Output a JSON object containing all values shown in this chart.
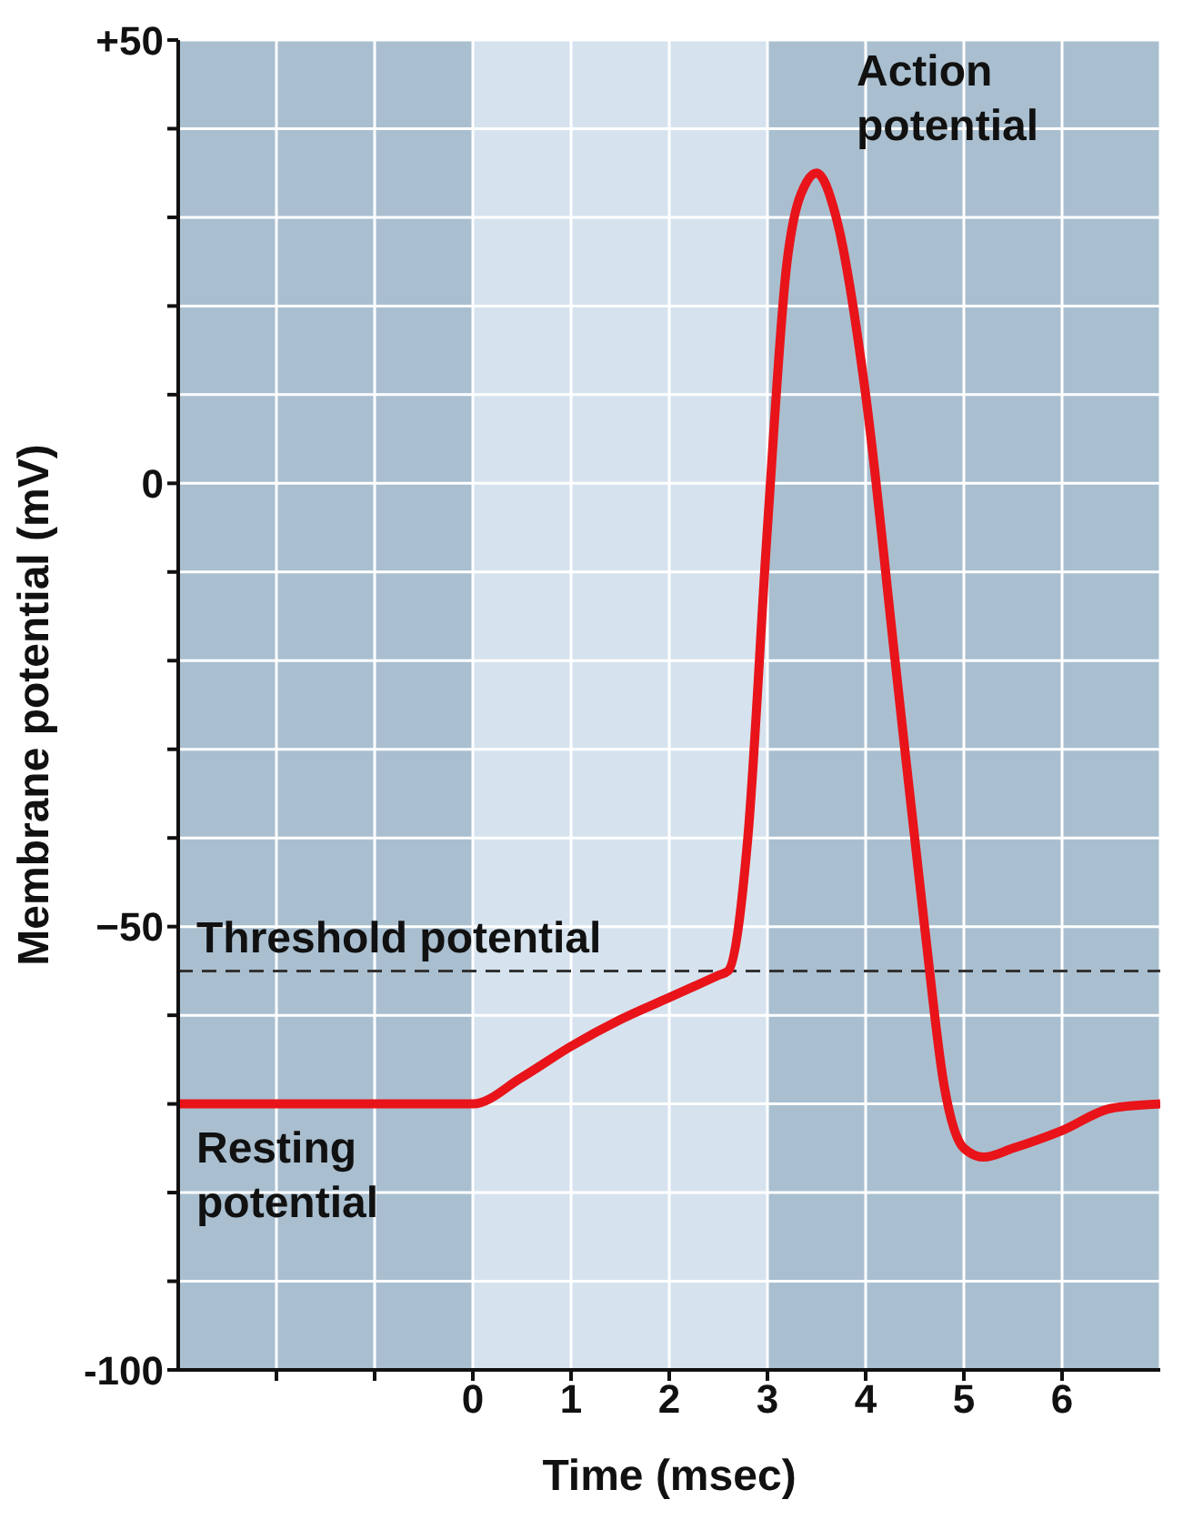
{
  "chart_data": {
    "type": "line",
    "xlabel": "Time (msec)",
    "ylabel": "Membrane potential (mV)",
    "x": [
      -3,
      0,
      0.5,
      1,
      1.5,
      2,
      2.5,
      2.6,
      2.8,
      3.0,
      3.2,
      3.4,
      3.5,
      3.7,
      4.0,
      4.3,
      4.6,
      4.8,
      5.0,
      5.2,
      5.5,
      6.0,
      6.5,
      7
    ],
    "series": [
      {
        "color": "#e8141a",
        "values": [
          -70,
          -70,
          -67,
          -63.5,
          -60.5,
          -58,
          -55.5,
          -55,
          -40,
          -5,
          25,
          34,
          35,
          30,
          10,
          -20,
          -50,
          -68,
          -75,
          -76,
          -75,
          -73,
          -70.5,
          -70
        ]
      }
    ],
    "xlim": [
      -3,
      7
    ],
    "xticks": [
      {
        "value": -2,
        "label": null
      },
      {
        "value": -1,
        "label": null
      },
      0,
      1,
      2,
      3,
      4,
      5,
      6
    ],
    "ylim": [
      -100,
      50
    ],
    "yticks": [
      -100,
      {
        "value": -90,
        "label": null
      },
      {
        "value": -80,
        "label": null
      },
      {
        "value": -70,
        "label": null
      },
      {
        "value": -60,
        "label": null
      },
      {
        "value": -50,
        "label": "−50"
      },
      {
        "value": -40,
        "label": null
      },
      {
        "value": -30,
        "label": null
      },
      {
        "value": -20,
        "label": null
      },
      {
        "value": -10,
        "label": null
      },
      0,
      {
        "value": 10,
        "label": null
      },
      {
        "value": 20,
        "label": null
      },
      {
        "value": 30,
        "label": null
      },
      {
        "value": 40,
        "label": null
      },
      {
        "value": 50,
        "label": "+50"
      }
    ],
    "grid": true,
    "marker": "none",
    "line_style": "solid",
    "bands": [
      {
        "axis": "x",
        "from": -3,
        "to": 0,
        "color": "#a9bfd0"
      },
      {
        "axis": "x",
        "from": 0,
        "to": 3,
        "color": "#d6e3ee"
      },
      {
        "axis": "x",
        "from": 3,
        "to": 7,
        "color": "#a9bfd0"
      }
    ],
    "ref_lines": [
      {
        "axis": "y",
        "value": -55,
        "label": "Threshold potential",
        "color": "#333333",
        "line_style": "dashed"
      }
    ],
    "annotations": [
      {
        "text": "Resting potential",
        "x": -3,
        "y": -70
      },
      {
        "text": "Action potential",
        "x": 3.5,
        "y": 35
      }
    ]
  }
}
